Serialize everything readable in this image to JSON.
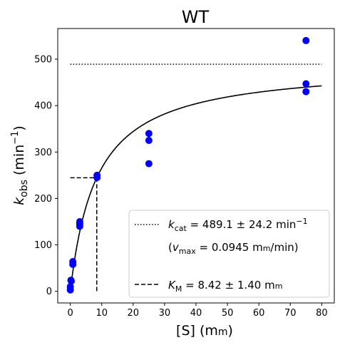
{
  "chart_data": {
    "type": "scatter",
    "title": "WT",
    "xlabel": {
      "main": "[S] (m",
      "unit_sc": "m",
      "close": ")"
    },
    "ylabel": {
      "k": "k",
      "sub": "obs",
      "unit": " (min",
      "sup": "−1",
      "close": ")"
    },
    "xlim": [
      -4,
      84
    ],
    "ylim": [
      -25,
      566
    ],
    "x_ticks": [
      0,
      10,
      20,
      30,
      40,
      50,
      60,
      70,
      80
    ],
    "y_ticks": [
      0,
      100,
      200,
      300,
      400,
      500
    ],
    "grid": false,
    "points": {
      "color": "#0000ff",
      "x": [
        0,
        0,
        0.2,
        0.3,
        0.8,
        0.8,
        3,
        3,
        3,
        8.5,
        8.5,
        25,
        25,
        25,
        75,
        75,
        75
      ],
      "y": [
        3,
        10,
        24,
        22,
        58,
        64,
        140,
        145,
        150,
        245,
        250,
        275,
        325,
        340,
        430,
        447,
        540
      ]
    },
    "fit_curve": {
      "kcat": 489.1,
      "km": 8.42,
      "x_range": [
        0,
        80
      ],
      "style": "solid",
      "color": "#000000"
    },
    "kcat_line": {
      "y": 489.1,
      "x_range": [
        0,
        80
      ],
      "style": "dotted"
    },
    "km_guide": {
      "x": 8.42,
      "y": 244.55,
      "x_from": 0,
      "style": "dashed"
    },
    "legend": {
      "placement": "lower-right",
      "kcat": {
        "k": "k",
        "sub": "cat",
        "text": " = 489.1 ± 24.2 min",
        "sup": "−1"
      },
      "vmax": {
        "open": "(",
        "v": "v",
        "sub": "max",
        "text": " = 0.0945 m",
        "unit_sc": "m",
        "tail": "/min)"
      },
      "km": {
        "k": "K",
        "sub": "M",
        "text": " = 8.42 ± 1.40 m",
        "unit_sc": "m"
      }
    }
  }
}
